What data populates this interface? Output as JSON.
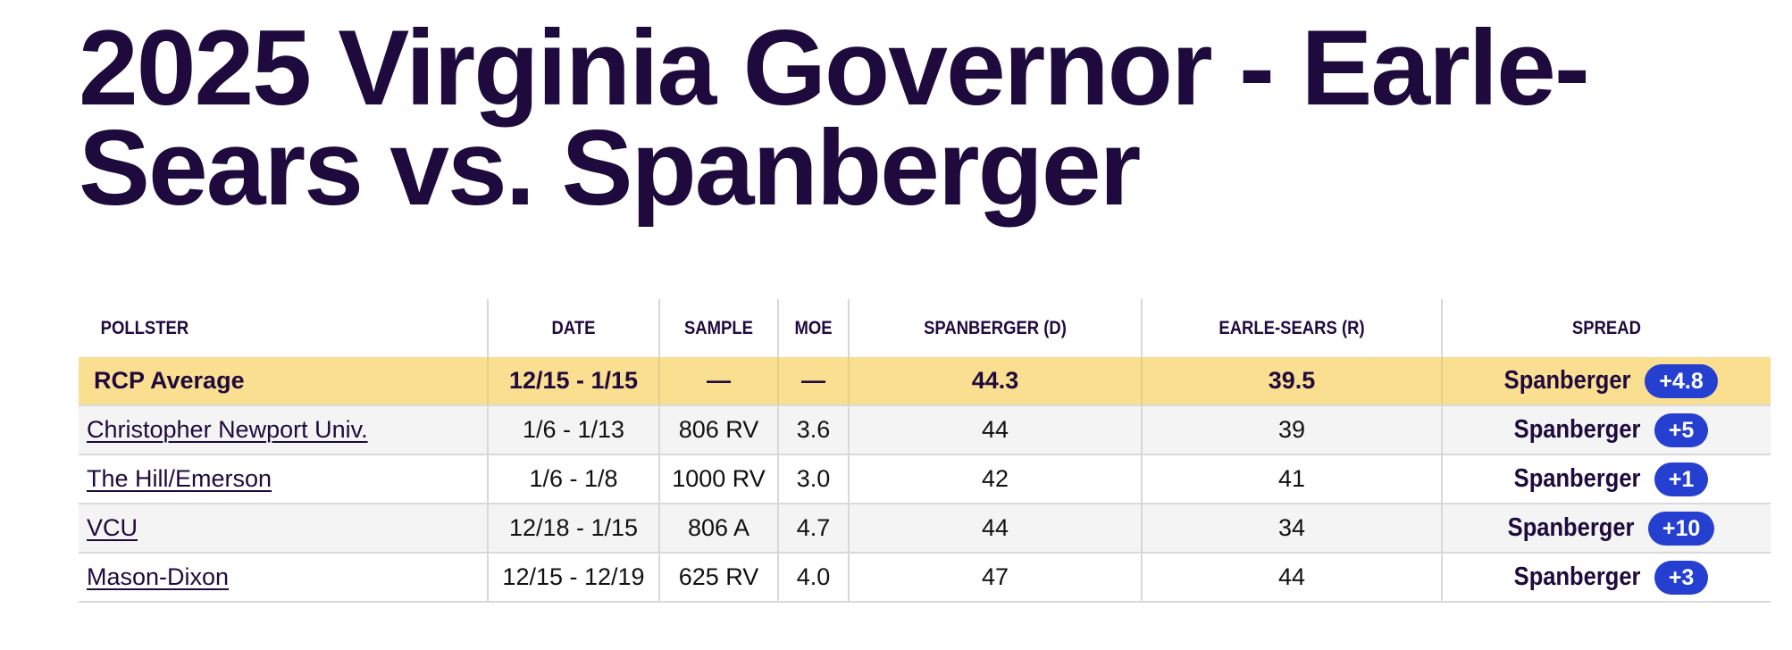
{
  "page": {
    "title": "2025 Virginia Governor - Earle-Sears vs. Spanberger"
  },
  "table": {
    "headers": {
      "pollster": "POLLSTER",
      "date": "DATE",
      "sample": "SAMPLE",
      "moe": "MOE",
      "spanberger": "SPANBERGER (D)",
      "earle_sears": "EARLE-SEARS (R)",
      "spread": "SPREAD"
    },
    "average": {
      "pollster": "RCP Average",
      "date": "12/15 - 1/15",
      "sample": "—",
      "moe": "—",
      "spanberger": "44.3",
      "earle_sears": "39.5",
      "spread_leader": "Spanberger",
      "spread_value": "+4.8"
    },
    "rows": [
      {
        "pollster": "Christopher Newport Univ.",
        "date": "1/6 - 1/13",
        "sample": "806 RV",
        "moe": "3.6",
        "spanberger": "44",
        "earle_sears": "39",
        "spread_leader": "Spanberger",
        "spread_value": "+5"
      },
      {
        "pollster": "The Hill/Emerson",
        "date": "1/6 - 1/8",
        "sample": "1000 RV",
        "moe": "3.0",
        "spanberger": "42",
        "earle_sears": "41",
        "spread_leader": "Spanberger",
        "spread_value": "+1"
      },
      {
        "pollster": "VCU",
        "date": "12/18 - 1/15",
        "sample": "806 A",
        "moe": "4.7",
        "spanberger": "44",
        "earle_sears": "34",
        "spread_leader": "Spanberger",
        "spread_value": "+10"
      },
      {
        "pollster": "Mason-Dixon",
        "date": "12/15 - 12/19",
        "sample": "625 RV",
        "moe": "4.0",
        "spanberger": "47",
        "earle_sears": "44",
        "spread_leader": "Spanberger",
        "spread_value": "+3"
      }
    ]
  },
  "colors": {
    "title_text": "#1f0a3d",
    "average_row_bg": "#fbdf90",
    "striped_row_bg": "#f4f4f4",
    "spread_badge_bg": "#2540d0",
    "spread_badge_text": "#ffffff"
  }
}
